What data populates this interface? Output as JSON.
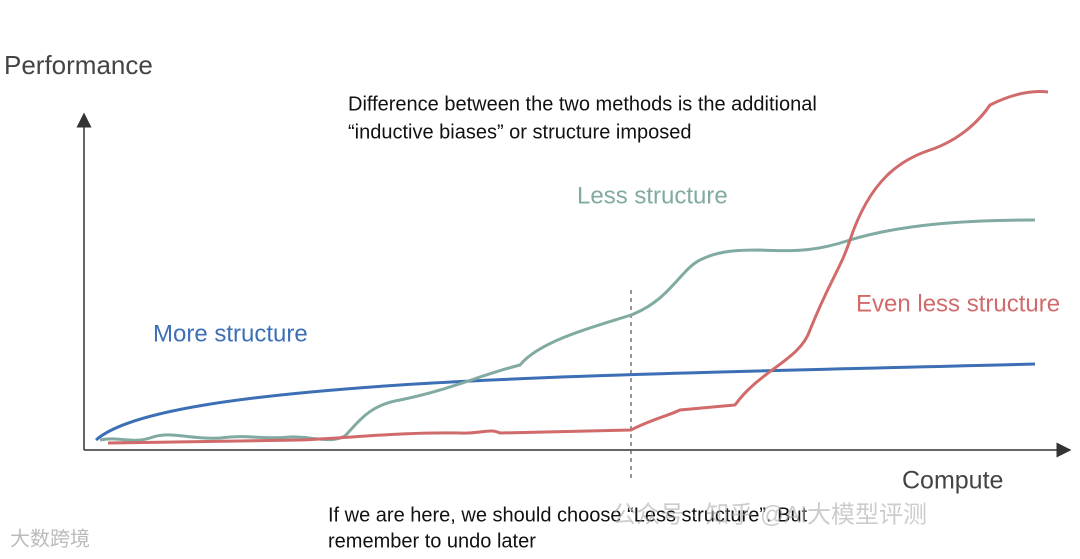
{
  "axis_labels": {
    "y": "Performance",
    "x": "Compute"
  },
  "annotation_top": {
    "lines": [
      "Difference between the two methods is the additional",
      "“inductive biases” or structure imposed"
    ]
  },
  "annotation_bottom": {
    "lines": [
      "If we are here, we should choose “Less structure”. But",
      "remember to undo later"
    ]
  },
  "curve_labels": {
    "more": "More structure",
    "less": "Less structure",
    "even_less": "Even less structure"
  },
  "watermarks": {
    "left": "大数跨境",
    "right": "公众号 · 知乎 @AI大模型评测"
  }
}
